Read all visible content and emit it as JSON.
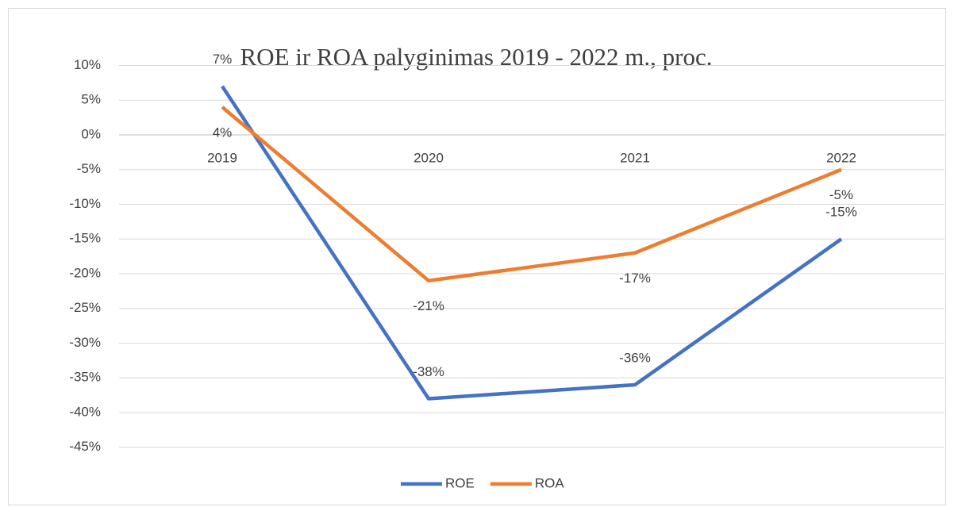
{
  "chart_data": {
    "type": "line",
    "title": "ROE ir ROA palyginimas 2019 - 2022 m., proc.",
    "categories": [
      "2019",
      "2020",
      "2021",
      "2022"
    ],
    "series": [
      {
        "name": "ROE",
        "color": "#4472c4",
        "values": [
          7,
          -38,
          -36,
          -15
        ],
        "value_labels": [
          "7%",
          "-38%",
          "-36%",
          "-15%"
        ]
      },
      {
        "name": "ROA",
        "color": "#ed7d31",
        "values": [
          4,
          -21,
          -17,
          -5
        ],
        "value_labels": [
          "4%",
          "-21%",
          "-17%",
          "-5%"
        ]
      }
    ],
    "ylim": [
      -45,
      10
    ],
    "yticks": [
      {
        "value": 10,
        "label": "10%"
      },
      {
        "value": 5,
        "label": "5%"
      },
      {
        "value": 0,
        "label": "0%"
      },
      {
        "value": -5,
        "label": "-5%"
      },
      {
        "value": -10,
        "label": "-10%"
      },
      {
        "value": -15,
        "label": "-15%"
      },
      {
        "value": -20,
        "label": "-20%"
      },
      {
        "value": -25,
        "label": "-25%"
      },
      {
        "value": -30,
        "label": "-30%"
      },
      {
        "value": -35,
        "label": "-35%"
      },
      {
        "value": -40,
        "label": "-40%"
      },
      {
        "value": -45,
        "label": "-45%"
      }
    ],
    "grid": true,
    "legend": "bottom"
  }
}
